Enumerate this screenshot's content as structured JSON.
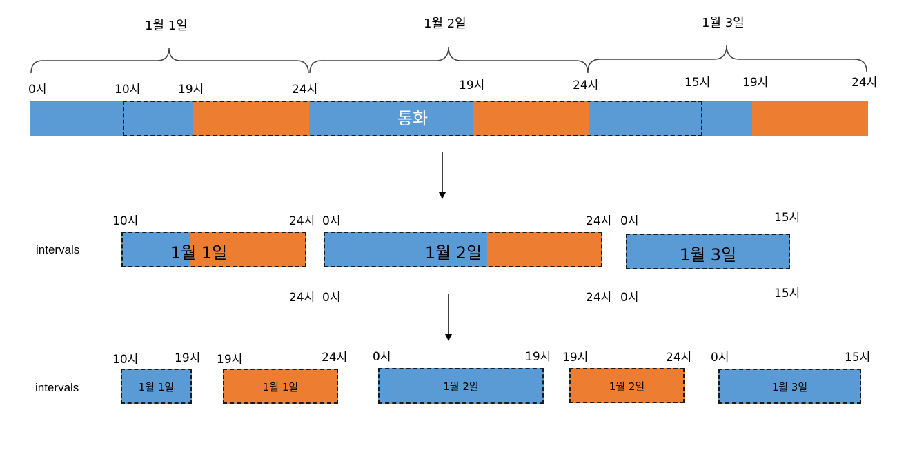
{
  "top": {
    "dates": [
      "1월 1일",
      "1월 2일",
      "1월 3일"
    ],
    "ticks": [
      "0시",
      "10시",
      "19시",
      "24시",
      "19시",
      "24시",
      "15시",
      "19시",
      "24시"
    ],
    "call_label": "통화"
  },
  "row2": {
    "side_label": "intervals",
    "ticks_above": [
      "10시",
      "24시",
      "0시",
      "24시",
      "0시",
      "15시"
    ],
    "ticks_below": [
      "24시",
      "0시",
      "24시",
      "0시",
      "15시"
    ],
    "boxes": [
      "1월 1일",
      "1월 2일",
      "1월 3일"
    ]
  },
  "row3": {
    "side_label": "intervals",
    "ticks": [
      "10시",
      "19시",
      "19시",
      "24시",
      "0시",
      "19시",
      "19시",
      "24시",
      "0시",
      "15시"
    ],
    "boxes": [
      "1월 1일",
      "1월 1일",
      "1월 2일",
      "1월 2일",
      "1월 3일"
    ]
  },
  "colors": {
    "day": "#5b9bd5",
    "night": "#ed7d31"
  }
}
